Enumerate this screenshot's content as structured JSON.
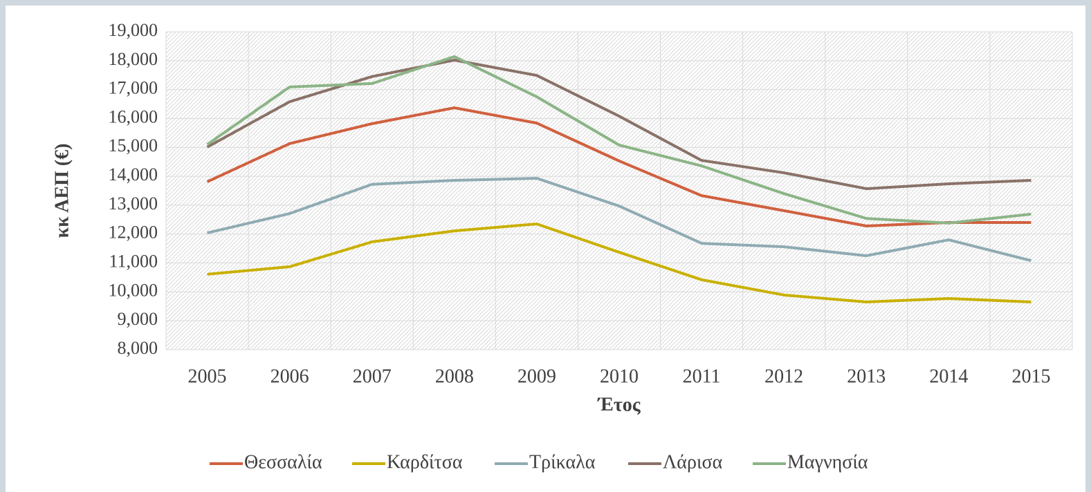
{
  "chart_data": {
    "type": "line",
    "x_label": "Έτος",
    "y_label": "κκ ΑΕΠ (€)",
    "categories": [
      "2005",
      "2006",
      "2007",
      "2008",
      "2009",
      "2010",
      "2011",
      "2012",
      "2013",
      "2014",
      "2015"
    ],
    "series": [
      {
        "name": "Θεσσαλία",
        "color": "#d0603f",
        "values": [
          13810,
          15130,
          15820,
          16370,
          15840,
          14530,
          13330,
          12810,
          12280,
          12400,
          12400
        ]
      },
      {
        "name": "Καρδίτσα",
        "color": "#c9b000",
        "values": [
          10610,
          10870,
          11730,
          12110,
          12350,
          11370,
          10420,
          9890,
          9650,
          9770,
          9650
        ]
      },
      {
        "name": "Τρίκαλα",
        "color": "#8fabb3",
        "values": [
          12040,
          12710,
          13720,
          13860,
          13930,
          12970,
          11680,
          11560,
          11250,
          11800,
          11080
        ]
      },
      {
        "name": "Λάρισα",
        "color": "#8a7268",
        "values": [
          15010,
          16580,
          17450,
          18020,
          17490,
          16080,
          14550,
          14120,
          13570,
          13740,
          13860
        ]
      },
      {
        "name": "Μαγνησία",
        "color": "#8cb487",
        "values": [
          15100,
          17090,
          17210,
          18140,
          16750,
          15080,
          14360,
          13400,
          12540,
          12380,
          12690
        ]
      }
    ],
    "ylim": [
      8000,
      19000
    ],
    "yticks": [
      {
        "value": 8000,
        "label": "8,000"
      },
      {
        "value": 9000,
        "label": "9,000"
      },
      {
        "value": 10000,
        "label": "10,000"
      },
      {
        "value": 11000,
        "label": "11,000"
      },
      {
        "value": 12000,
        "label": "12,000"
      },
      {
        "value": 13000,
        "label": "13,000"
      },
      {
        "value": 14000,
        "label": "14,000"
      },
      {
        "value": 15000,
        "label": "15,000"
      },
      {
        "value": 16000,
        "label": "16,000"
      },
      {
        "value": 17000,
        "label": "17,000"
      },
      {
        "value": 18000,
        "label": "18,000"
      },
      {
        "value": 19000,
        "label": "19,000"
      }
    ],
    "grid": true,
    "legend": "bottom"
  }
}
